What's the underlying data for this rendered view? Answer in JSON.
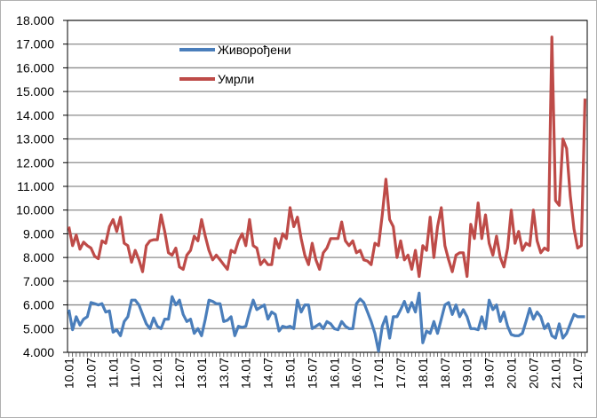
{
  "chart_data": {
    "type": "line",
    "title": "",
    "xlabel": "",
    "ylabel": "",
    "ylim": [
      4000,
      18000
    ],
    "y_ticks": [
      "4.000",
      "5.000",
      "6.000",
      "7.000",
      "8.000",
      "9.000",
      "10.000",
      "11.000",
      "12.000",
      "13.000",
      "14.000",
      "15.000",
      "16.000",
      "17.000",
      "18.000"
    ],
    "y_tick_values": [
      4000,
      5000,
      6000,
      7000,
      8000,
      9000,
      10000,
      11000,
      12000,
      13000,
      14000,
      15000,
      16000,
      17000,
      18000
    ],
    "x_tick_labels": [
      "10.01",
      "10.07",
      "11.01",
      "11.07",
      "12.01",
      "12.07",
      "13.01",
      "13.07",
      "14.01",
      "14.07",
      "15.01",
      "15.07",
      "16.01",
      "16.07",
      "17.01",
      "17.07",
      "18.01",
      "18.07",
      "19.01",
      "19.07",
      "20.01",
      "20.07",
      "21.01",
      "21.07"
    ],
    "x_start": "10.01",
    "x_end": "21.09",
    "grid": true,
    "legend_position": "top-left",
    "series": [
      {
        "name": "Живорођени",
        "color": "#4a7ebb",
        "values": [
          5800,
          4950,
          5500,
          5150,
          5400,
          5500,
          6100,
          6050,
          6000,
          6050,
          5700,
          5750,
          4850,
          4950,
          4700,
          5300,
          5500,
          6200,
          6200,
          6000,
          5600,
          5200,
          5000,
          5450,
          5100,
          5000,
          5400,
          5400,
          6350,
          6000,
          6200,
          5600,
          5300,
          5400,
          4800,
          5000,
          4700,
          5400,
          6200,
          6150,
          6050,
          6050,
          5300,
          5350,
          5500,
          4700,
          5100,
          5050,
          5100,
          5700,
          6200,
          5800,
          5900,
          6000,
          5400,
          5700,
          5600,
          4900,
          5100,
          5050,
          5100,
          5000,
          6200,
          5700,
          6000,
          6000,
          5000,
          5100,
          5200,
          5000,
          5300,
          5200,
          5000,
          4950,
          5300,
          5100,
          5000,
          5000,
          6050,
          6250,
          6100,
          5700,
          5300,
          4800,
          4050,
          5100,
          5500,
          4600,
          5500,
          5500,
          5800,
          6150,
          5700,
          6100,
          5700,
          6500,
          4400,
          4900,
          4800,
          5300,
          4800,
          5400,
          6000,
          6100,
          5600,
          6000,
          5500,
          5800,
          5500,
          5000,
          5000,
          4950,
          5500,
          5000,
          6200,
          5800,
          6000,
          5300,
          5700,
          5100,
          4750,
          4700,
          4700,
          4800,
          5300,
          5850,
          5400,
          5700,
          5500,
          5000,
          5200,
          4700,
          4600,
          5200,
          4600,
          4800,
          5200,
          5600,
          5500,
          5500,
          5500
        ]
      },
      {
        "name": "Умрли",
        "color": "#be4b48",
        "values": [
          9300,
          8500,
          8950,
          8350,
          8650,
          8500,
          8400,
          8050,
          7950,
          8700,
          8600,
          9300,
          9600,
          9100,
          9700,
          8600,
          8500,
          7800,
          8300,
          7900,
          7400,
          8500,
          8700,
          8750,
          8750,
          9800,
          9100,
          8200,
          8100,
          8400,
          7600,
          7500,
          8100,
          8300,
          8900,
          8700,
          9600,
          8900,
          8300,
          7900,
          8100,
          7900,
          7700,
          7500,
          8300,
          8200,
          8700,
          9000,
          8500,
          9600,
          8500,
          8400,
          7700,
          7900,
          7700,
          7700,
          8800,
          8400,
          9000,
          8800,
          10100,
          9300,
          9700,
          8800,
          8100,
          7700,
          8600,
          7900,
          7500,
          8200,
          8400,
          8800,
          8800,
          8800,
          9500,
          8700,
          8500,
          8700,
          8200,
          8300,
          7900,
          7850,
          7700,
          8600,
          8500,
          9800,
          11300,
          9600,
          9300,
          8000,
          8700,
          7900,
          8100,
          7500,
          8300,
          7200,
          8500,
          8300,
          9700,
          8000,
          9300,
          10100,
          8500,
          7900,
          7400,
          8100,
          8200,
          8200,
          7200,
          9400,
          8800,
          10300,
          8800,
          9800,
          8600,
          8100,
          8900,
          8000,
          7600,
          8400,
          10000,
          8600,
          9100,
          8300,
          8600,
          8500,
          10000,
          8700,
          8200,
          8400,
          8300,
          17300,
          10400,
          10200,
          13000,
          12600,
          10600,
          9200,
          8400,
          8500,
          14700
        ]
      }
    ]
  }
}
